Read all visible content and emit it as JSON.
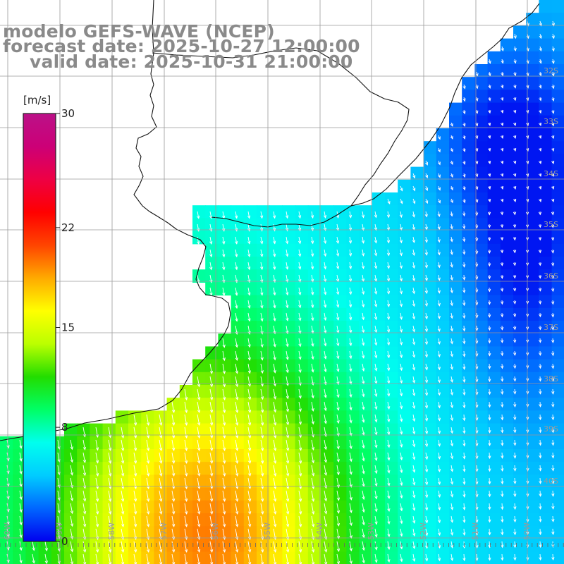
{
  "header": {
    "model_line": "modelo GEFS-WAVE (NCEP)",
    "forecast_line": "forecast date: 2025-10-27 12:00:00",
    "valid_line": "valid date: 2025-10-31 21:00:00"
  },
  "colorbar": {
    "unit": "[m/s]",
    "ticks": [
      "30",
      "22",
      "15",
      "8",
      "0"
    ],
    "tick_values": [
      30,
      22,
      15,
      8,
      0
    ],
    "range": [
      0,
      30
    ],
    "stops": [
      "#0000ee",
      "#0066ff",
      "#00ccff",
      "#00ffee",
      "#00ff66",
      "#22dd00",
      "#bbff00",
      "#ffff00",
      "#ffaa00",
      "#ff4400",
      "#ff0000",
      "#ee0044",
      "#cc0077",
      "#bb1188"
    ]
  },
  "latitude_labels": [
    "32S",
    "33S",
    "34S",
    "35S",
    "36S",
    "37S",
    "38S",
    "39S",
    "40S"
  ],
  "longitude_labels": [
    "60W",
    "59W",
    "58W",
    "57W",
    "56W",
    "55W",
    "54W",
    "53W",
    "52W",
    "51W",
    "50W"
  ],
  "colors": {
    "land": "#ffffff",
    "grid": "#9a9a9a",
    "coast": "#111111",
    "arrow": "#ffffff"
  }
}
